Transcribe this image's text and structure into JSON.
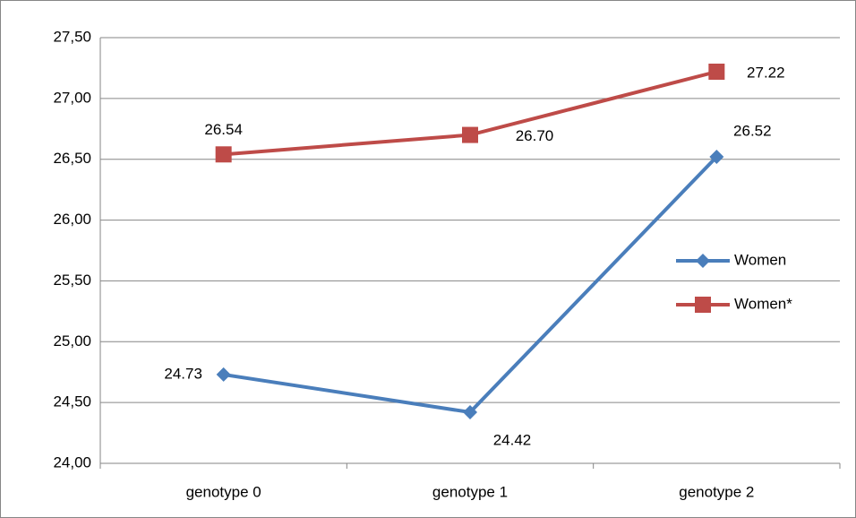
{
  "chart_data": {
    "type": "line",
    "categories": [
      "genotype 0",
      "genotype 1",
      "genotype 2"
    ],
    "series": [
      {
        "name": "Women",
        "color": "#4a7ebb",
        "marker": "diamond",
        "values": [
          24.73,
          24.42,
          26.52
        ],
        "value_labels": [
          "24.73",
          "24.42",
          "26.52"
        ]
      },
      {
        "name": "Women*",
        "color": "#be4b48",
        "marker": "square",
        "values": [
          26.54,
          26.7,
          27.22
        ],
        "value_labels": [
          "26.54",
          "26.70",
          "27.22"
        ]
      }
    ],
    "ylim": [
      24,
      27.5
    ],
    "yticks": [
      {
        "value": 24,
        "label": "24,00"
      },
      {
        "value": 24.5,
        "label": "24,50"
      },
      {
        "value": 25,
        "label": "25,00"
      },
      {
        "value": 25.5,
        "label": "25,50"
      },
      {
        "value": 26,
        "label": "26,00"
      },
      {
        "value": 26.5,
        "label": "26,50"
      },
      {
        "value": 27,
        "label": "27,00"
      },
      {
        "value": 27.5,
        "label": "27,50"
      }
    ],
    "grid": true,
    "legend": "right"
  }
}
